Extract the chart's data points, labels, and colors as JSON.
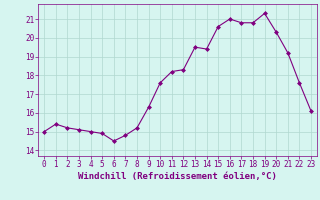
{
  "x": [
    0,
    1,
    2,
    3,
    4,
    5,
    6,
    7,
    8,
    9,
    10,
    11,
    12,
    13,
    14,
    15,
    16,
    17,
    18,
    19,
    20,
    21,
    22,
    23
  ],
  "y": [
    15.0,
    15.4,
    15.2,
    15.1,
    15.0,
    14.9,
    14.5,
    14.8,
    15.2,
    16.3,
    17.6,
    18.2,
    18.3,
    19.5,
    19.4,
    20.6,
    21.0,
    20.8,
    20.8,
    21.3,
    20.3,
    19.2,
    17.6,
    16.1
  ],
  "line_color": "#800080",
  "marker": "D",
  "marker_size": 2,
  "bg_color": "#d6f5f0",
  "grid_color": "#b0d8d0",
  "xlabel": "Windchill (Refroidissement éolien,°C)",
  "ylabel_ticks": [
    14,
    15,
    16,
    17,
    18,
    19,
    20,
    21
  ],
  "xtick_labels": [
    "0",
    "1",
    "2",
    "3",
    "4",
    "5",
    "6",
    "7",
    "8",
    "9",
    "10",
    "11",
    "12",
    "13",
    "14",
    "15",
    "16",
    "17",
    "18",
    "19",
    "20",
    "21",
    "22",
    "23"
  ],
  "ylim": [
    13.7,
    21.8
  ],
  "xlim": [
    -0.5,
    23.5
  ],
  "xlabel_color": "#800080",
  "tick_color": "#800080",
  "label_fontsize": 6.5,
  "tick_fontsize": 5.5
}
